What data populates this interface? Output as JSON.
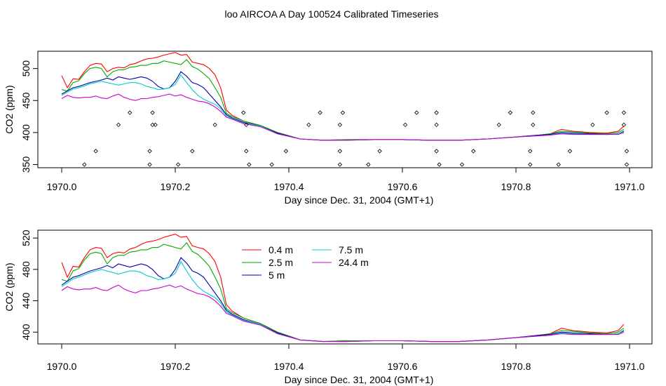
{
  "figure_title": "loo AIRCOA A  Day 100524  Calibrated Timeseries",
  "chart_data": [
    {
      "type": "line",
      "xlabel": "Day since Dec. 31, 2004 (GMT+1)",
      "ylabel": "CO2 (ppm)",
      "xlim": [
        1970.0,
        1971.0
      ],
      "ylim": [
        345,
        527
      ],
      "xticks": [
        "1970.0",
        "1970.2",
        "1970.4",
        "1970.6",
        "1970.8",
        "1971.0"
      ],
      "yticks": [
        "350",
        "400",
        "450",
        "500"
      ],
      "grid": false,
      "series": [
        {
          "name": "0.4 m",
          "color": "#ff0000",
          "x": [
            1970.0,
            1970.01,
            1970.02,
            1970.03,
            1970.04,
            1970.05,
            1970.06,
            1970.07,
            1970.08,
            1970.09,
            1970.1,
            1970.11,
            1970.12,
            1970.13,
            1970.14,
            1970.15,
            1970.16,
            1970.17,
            1970.18,
            1970.19,
            1970.2,
            1970.21,
            1970.22,
            1970.23,
            1970.24,
            1970.25,
            1970.26,
            1970.27,
            1970.28,
            1970.29,
            1970.3,
            1970.32,
            1970.35,
            1970.38,
            1970.42,
            1970.46,
            1970.5,
            1970.55,
            1970.6,
            1970.65,
            1970.7,
            1970.75,
            1970.8,
            1970.84,
            1970.86,
            1970.88,
            1970.9,
            1970.93,
            1970.96,
            1970.98,
            1970.99
          ],
          "y": [
            489,
            470,
            484,
            483,
            495,
            505,
            508,
            507,
            495,
            500,
            502,
            501,
            506,
            508,
            512,
            515,
            516,
            518,
            521,
            523,
            525,
            521,
            522,
            510,
            508,
            506,
            500,
            490,
            470,
            435,
            427,
            418,
            411,
            400,
            390,
            388,
            389,
            389,
            389,
            388,
            388,
            390,
            393,
            396,
            398,
            405,
            402,
            400,
            399,
            402,
            410
          ]
        },
        {
          "name": "2.5 m",
          "color": "#00aa00",
          "x": [
            1970.0,
            1970.01,
            1970.02,
            1970.03,
            1970.04,
            1970.05,
            1970.06,
            1970.07,
            1970.08,
            1970.09,
            1970.1,
            1970.11,
            1970.12,
            1970.13,
            1970.14,
            1970.15,
            1970.16,
            1970.17,
            1970.18,
            1970.19,
            1970.2,
            1970.21,
            1970.22,
            1970.23,
            1970.24,
            1970.25,
            1970.26,
            1970.27,
            1970.28,
            1970.29,
            1970.3,
            1970.32,
            1970.35,
            1970.38,
            1970.42,
            1970.46,
            1970.5,
            1970.55,
            1970.6,
            1970.65,
            1970.7,
            1970.75,
            1970.8,
            1970.84,
            1970.86,
            1970.88,
            1970.9,
            1970.93,
            1970.96,
            1970.98,
            1970.99
          ],
          "y": [
            467,
            465,
            478,
            481,
            492,
            500,
            502,
            500,
            487,
            495,
            498,
            498,
            502,
            503,
            505,
            505,
            508,
            508,
            512,
            510,
            508,
            506,
            514,
            503,
            499,
            492,
            484,
            470,
            455,
            430,
            425,
            418,
            411,
            400,
            390,
            388,
            389,
            389,
            389,
            388,
            388,
            390,
            393,
            396,
            398,
            402,
            401,
            399,
            398,
            400,
            405
          ]
        },
        {
          "name": "5 m",
          "color": "#0000aa",
          "x": [
            1970.0,
            1970.01,
            1970.02,
            1970.03,
            1970.04,
            1970.05,
            1970.06,
            1970.07,
            1970.08,
            1970.09,
            1970.1,
            1970.11,
            1970.12,
            1970.13,
            1970.14,
            1970.15,
            1970.16,
            1970.17,
            1970.18,
            1970.19,
            1970.2,
            1970.21,
            1970.22,
            1970.23,
            1970.24,
            1970.25,
            1970.26,
            1970.27,
            1970.28,
            1970.29,
            1970.3,
            1970.32,
            1970.35,
            1970.38,
            1970.42,
            1970.46,
            1970.5,
            1970.55,
            1970.6,
            1970.65,
            1970.7,
            1970.75,
            1970.8,
            1970.84,
            1970.86,
            1970.88,
            1970.9,
            1970.93,
            1970.96,
            1970.98,
            1970.99
          ],
          "y": [
            460,
            465,
            470,
            472,
            475,
            478,
            480,
            482,
            485,
            482,
            487,
            485,
            483,
            485,
            487,
            485,
            480,
            472,
            468,
            470,
            480,
            495,
            488,
            478,
            475,
            470,
            460,
            450,
            440,
            428,
            423,
            416,
            410,
            399,
            390,
            388,
            388,
            389,
            389,
            388,
            388,
            390,
            393,
            396,
            397,
            400,
            399,
            398,
            397,
            398,
            402
          ]
        },
        {
          "name": "7.5 m",
          "color": "#00cccc",
          "x": [
            1970.0,
            1970.01,
            1970.02,
            1970.03,
            1970.04,
            1970.05,
            1970.06,
            1970.07,
            1970.08,
            1970.09,
            1970.1,
            1970.11,
            1970.12,
            1970.13,
            1970.14,
            1970.15,
            1970.16,
            1970.17,
            1970.18,
            1970.19,
            1970.2,
            1970.21,
            1970.22,
            1970.23,
            1970.24,
            1970.25,
            1970.26,
            1970.27,
            1970.28,
            1970.29,
            1970.3,
            1970.32,
            1970.35,
            1970.38,
            1970.42,
            1970.46,
            1970.5,
            1970.55,
            1970.6,
            1970.65,
            1970.7,
            1970.75,
            1970.8,
            1970.84,
            1970.86,
            1970.88,
            1970.9,
            1970.93,
            1970.96,
            1970.98,
            1970.99
          ],
          "y": [
            458,
            463,
            468,
            470,
            473,
            476,
            478,
            480,
            478,
            476,
            474,
            476,
            478,
            478,
            476,
            472,
            470,
            467,
            468,
            470,
            475,
            490,
            478,
            467,
            458,
            452,
            448,
            444,
            437,
            426,
            422,
            415,
            410,
            398,
            390,
            388,
            388,
            389,
            389,
            388,
            388,
            390,
            393,
            395,
            396,
            399,
            398,
            397,
            397,
            398,
            401
          ]
        },
        {
          "name": "24.4 m",
          "color": "#cc00cc",
          "x": [
            1970.0,
            1970.01,
            1970.02,
            1970.03,
            1970.04,
            1970.05,
            1970.06,
            1970.07,
            1970.08,
            1970.09,
            1970.1,
            1970.11,
            1970.12,
            1970.13,
            1970.14,
            1970.15,
            1970.16,
            1970.17,
            1970.18,
            1970.19,
            1970.2,
            1970.21,
            1970.22,
            1970.23,
            1970.24,
            1970.25,
            1970.26,
            1970.27,
            1970.28,
            1970.29,
            1970.3,
            1970.32,
            1970.35,
            1970.38,
            1970.42,
            1970.46,
            1970.5,
            1970.55,
            1970.6,
            1970.65,
            1970.7,
            1970.75,
            1970.8,
            1970.84,
            1970.86,
            1970.88,
            1970.9,
            1970.93,
            1970.96,
            1970.98,
            1970.99
          ],
          "y": [
            453,
            458,
            455,
            454,
            455,
            455,
            457,
            454,
            453,
            457,
            460,
            455,
            452,
            450,
            453,
            453,
            455,
            456,
            458,
            460,
            457,
            459,
            455,
            452,
            449,
            448,
            445,
            440,
            433,
            424,
            421,
            414,
            409,
            398,
            390,
            388,
            388,
            389,
            389,
            388,
            388,
            390,
            393,
            395,
            396,
            398,
            397,
            397,
            397,
            397,
            400
          ]
        }
      ],
      "markers": {
        "x": [
          1970.04,
          1970.06,
          1970.1,
          1970.12,
          1970.155,
          1970.155,
          1970.16,
          1970.16,
          1970.165,
          1970.205,
          1970.23,
          1970.27,
          1970.32,
          1970.325,
          1970.325,
          1970.33,
          1970.37,
          1970.395,
          1970.435,
          1970.455,
          1970.49,
          1970.49,
          1970.49,
          1970.495,
          1970.54,
          1970.56,
          1970.605,
          1970.625,
          1970.66,
          1970.66,
          1970.66,
          1970.665,
          1970.705,
          1970.725,
          1970.77,
          1970.79,
          1970.825,
          1970.825,
          1970.83,
          1970.83,
          1970.875,
          1970.895,
          1970.935,
          1970.96,
          1970.99,
          1970.99,
          1970.995,
          1970.995
        ],
        "y": [
          350,
          371,
          412,
          431,
          350,
          371,
          412,
          431,
          412,
          350,
          371,
          412,
          431,
          412,
          371,
          350,
          350,
          371,
          412,
          431,
          350,
          371,
          412,
          431,
          350,
          371,
          412,
          431,
          431,
          412,
          371,
          350,
          350,
          371,
          412,
          431,
          350,
          371,
          412,
          431,
          350,
          371,
          412,
          431,
          431,
          412,
          371,
          350
        ]
      }
    },
    {
      "type": "line",
      "xlabel": "Day since Dec. 31, 2004 (GMT+1)",
      "ylabel": "CO2 (ppm)",
      "xlim": [
        1970.0,
        1971.0
      ],
      "ylim": [
        385,
        530
      ],
      "xticks": [
        "1970.0",
        "1970.2",
        "1970.4",
        "1970.6",
        "1970.8",
        "1971.0"
      ],
      "yticks": [
        "400",
        "440",
        "480",
        "520"
      ],
      "grid": false,
      "legend_entries": [
        "0.4 m",
        "2.5 m",
        "5 m",
        "7.5 m",
        "24.4 m"
      ],
      "legend_position": "top-center",
      "uses_series_of_first_panel": true
    }
  ]
}
